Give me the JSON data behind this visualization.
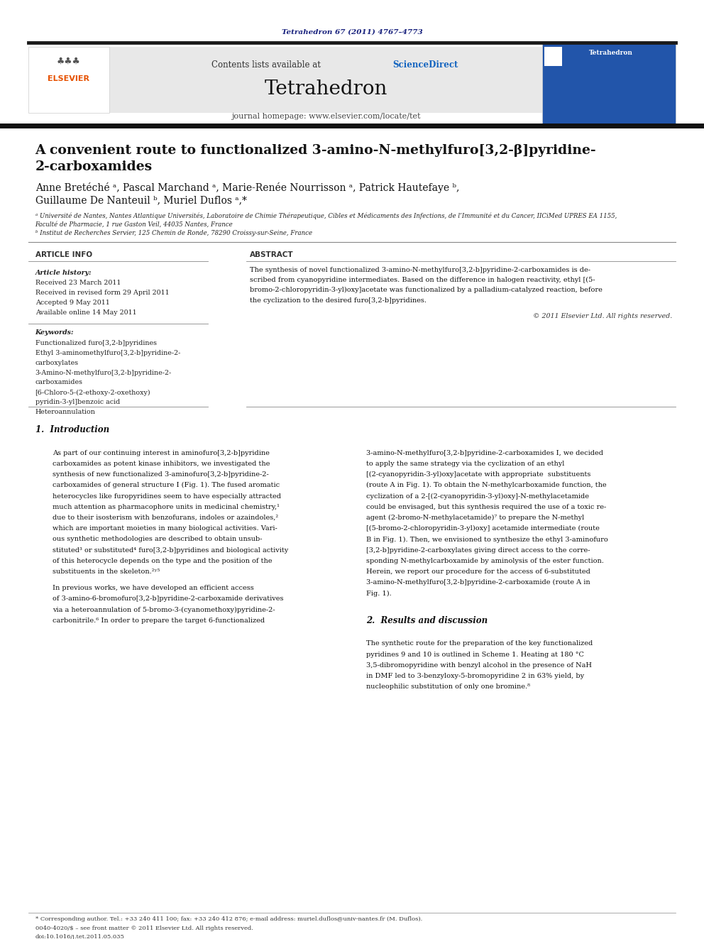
{
  "background_color": "#ffffff",
  "page_width": 9.92,
  "page_height": 13.23,
  "top_journal_ref": "Tetrahedron 67 (2011) 4767–4773",
  "top_journal_ref_color": "#1a237e",
  "header_bg_color": "#e8e8e8",
  "header_sciencedirect_color": "#1565c0",
  "journal_name": "Tetrahedron",
  "journal_homepage_text": "journal homepage: www.elsevier.com/locate/tet",
  "thick_bar_color": "#1a1a1a",
  "elsevier_color": "#e65100",
  "article_history": "Received 23 March 2011\nReceived in revised form 29 April 2011\nAccepted 9 May 2011\nAvailable online 14 May 2011",
  "keywords": "Functionalized furo[3,2-b]pyridines\nEthyl 3-aminomethylfuro[3,2-b]pyridine-2-\ncarboxylates\n3-Amino-N-methylfuro[3,2-b]pyridine-2-\ncarboxamides\n[6-Chloro-5-(2-ethoxy-2-oxethoxy)\npyridin-3-yl]benzoic acid\nHeteroannulation",
  "copyright_text": "© 2011 Elsevier Ltd. All rights reserved.",
  "footer_text1": "0040-4020/$ – see front matter © 2011 Elsevier Ltd. All rights reserved.",
  "footer_text2": "doi:10.1016/j.tet.2011.05.035",
  "footnote_text": "* Corresponding author. Tel.: +33 240 411 100; fax: +33 240 412 876; e-mail address: muriel.duflos@univ-nantes.fr (M. Duflos)."
}
